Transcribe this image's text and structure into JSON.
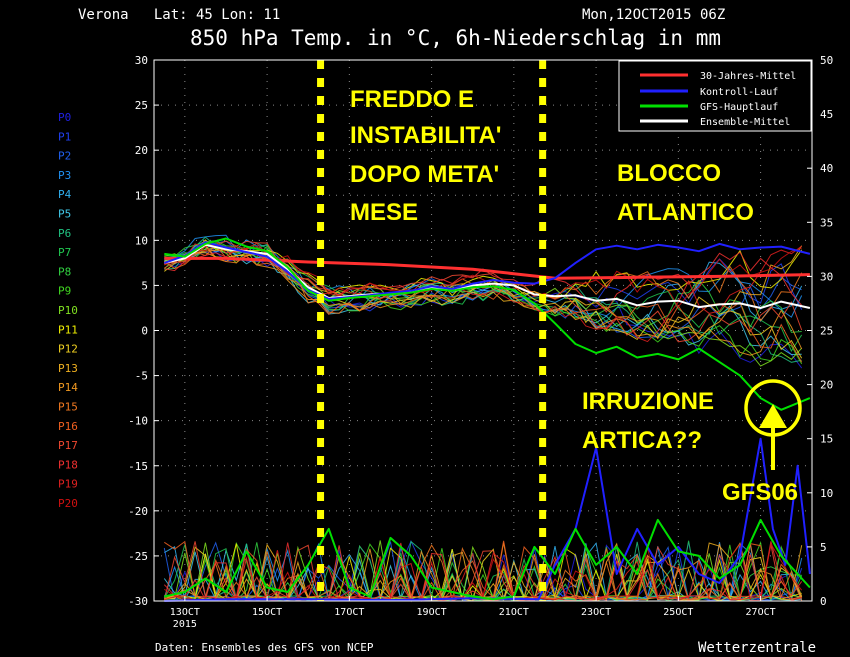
{
  "header": {
    "location": "Verona   Lat: 45 Lon: 11",
    "run": "Mon,12OCT2015 06Z",
    "title": "850 hPa Temp. in °C, 6h-Niederschlag in mm"
  },
  "footer": {
    "source": "Daten: Ensembles des GFS von NCEP",
    "brand": "Wetterzentrale"
  },
  "members": [
    {
      "name": "P0",
      "color": "#2020e0"
    },
    {
      "name": "P1",
      "color": "#2040f0"
    },
    {
      "name": "P2",
      "color": "#2060f0"
    },
    {
      "name": "P3",
      "color": "#2090f0"
    },
    {
      "name": "P4",
      "color": "#30b0f0"
    },
    {
      "name": "P5",
      "color": "#40c8e8"
    },
    {
      "name": "P6",
      "color": "#20c080"
    },
    {
      "name": "P7",
      "color": "#20c850"
    },
    {
      "name": "P8",
      "color": "#30d040"
    },
    {
      "name": "P9",
      "color": "#40d820"
    },
    {
      "name": "P10",
      "color": "#80e020"
    },
    {
      "name": "P11",
      "color": "#f0f000"
    },
    {
      "name": "P12",
      "color": "#f0d020"
    },
    {
      "name": "P13",
      "color": "#f0b020"
    },
    {
      "name": "P14",
      "color": "#f09820"
    },
    {
      "name": "P15",
      "color": "#f07820"
    },
    {
      "name": "P16",
      "color": "#f06020"
    },
    {
      "name": "P17",
      "color": "#f04830"
    },
    {
      "name": "P18",
      "color": "#f03030"
    },
    {
      "name": "P19",
      "color": "#e02020"
    },
    {
      "name": "P20",
      "color": "#d01010"
    }
  ],
  "annotations": {
    "freddo": [
      "FREDDO E",
      "INSTABILITA'",
      "DOPO META'",
      "MESE"
    ],
    "blocco": [
      "BLOCCO",
      "ATLANTICO"
    ],
    "irruzione": [
      "IRRUZIONE",
      "ARTICA??"
    ],
    "gfs06": "GFS06"
  },
  "chart_data": {
    "type": "line",
    "x_ticks": [
      {
        "day": 13,
        "label": "13OCT",
        "sub": "2015"
      },
      {
        "day": 15,
        "label": "15OCT",
        "sub": ""
      },
      {
        "day": 17,
        "label": "17OCT",
        "sub": ""
      },
      {
        "day": 19,
        "label": "19OCT",
        "sub": ""
      },
      {
        "day": 21,
        "label": "21OCT",
        "sub": ""
      },
      {
        "day": 23,
        "label": "23OCT",
        "sub": ""
      },
      {
        "day": 25,
        "label": "25OCT",
        "sub": ""
      },
      {
        "day": 27,
        "label": "27OCT",
        "sub": ""
      }
    ],
    "xlim": [
      12.25,
      28.25
    ],
    "ylim_left": [
      -30,
      30
    ],
    "ylim_right": [
      0,
      50
    ],
    "y_ticks_left": [
      30,
      25,
      20,
      15,
      10,
      5,
      0,
      -5,
      -10,
      -15,
      -20,
      -25,
      -30
    ],
    "y_ticks_right": [
      50,
      45,
      40,
      35,
      30,
      25,
      20,
      15,
      10,
      5,
      0
    ],
    "grid": true,
    "legend": [
      {
        "name": "30-Jahres-Mittel",
        "color": "#ff3030"
      },
      {
        "name": "Kontroll-Lauf",
        "color": "#2020ff"
      },
      {
        "name": "GFS-Hauptlauf",
        "color": "#00e000"
      },
      {
        "name": "Ensemble-Mittel",
        "color": "#ffffff"
      }
    ],
    "legend_position": "top-right",
    "vertical_markers_day": [
      16.3,
      21.7
    ],
    "series": [
      {
        "name": "30-Jahres-Mittel",
        "color": "#ff3030",
        "x": [
          12.5,
          14,
          16,
          18,
          20,
          21,
          22,
          24,
          26,
          28.2
        ],
        "y": [
          8.0,
          8.0,
          7.6,
          7.3,
          6.8,
          6.3,
          5.8,
          5.9,
          6.0,
          6.2
        ]
      },
      {
        "name": "Ensemble-Mittel",
        "color": "#ffffff",
        "x": [
          12.5,
          13,
          13.5,
          14,
          14.5,
          15,
          15.5,
          16,
          16.5,
          17,
          17.5,
          18,
          18.5,
          19,
          19.5,
          20,
          20.5,
          21,
          21.5,
          22,
          22.5,
          23,
          23.5,
          24,
          24.5,
          25,
          25.5,
          26,
          26.5,
          27,
          27.5,
          28.2
        ],
        "y": [
          7.5,
          8.0,
          9.5,
          9.0,
          8.8,
          8.5,
          6.8,
          4.8,
          3.6,
          3.8,
          4.0,
          4.1,
          4.3,
          4.8,
          4.5,
          5.0,
          5.2,
          5.0,
          4.0,
          3.8,
          3.9,
          3.3,
          3.5,
          2.8,
          3.2,
          3.3,
          2.6,
          2.9,
          3.0,
          2.5,
          3.2,
          2.5
        ]
      },
      {
        "name": "Kontroll-Lauf",
        "color": "#2020ff",
        "x": [
          12.5,
          13,
          13.5,
          14,
          14.5,
          15,
          15.5,
          16,
          16.5,
          17,
          17.5,
          18,
          18.5,
          19,
          19.5,
          20,
          20.5,
          21,
          21.5,
          22,
          22.5,
          23,
          23.5,
          24,
          24.5,
          25,
          25.5,
          26,
          26.5,
          27,
          27.5,
          28.2
        ],
        "y": [
          7.5,
          8.3,
          9.8,
          9.2,
          8.7,
          8.2,
          6.5,
          4.5,
          3.5,
          3.7,
          3.9,
          4.2,
          4.4,
          4.9,
          4.6,
          5.2,
          5.6,
          5.3,
          5.2,
          5.8,
          7.5,
          9.0,
          9.4,
          9.0,
          9.5,
          9.2,
          8.8,
          9.6,
          9.0,
          9.2,
          9.3,
          8.5
        ]
      },
      {
        "name": "GFS-Hauptlauf",
        "color": "#00e000",
        "x": [
          12.5,
          13,
          13.5,
          14,
          14.5,
          15,
          15.5,
          16,
          16.5,
          17,
          17.5,
          18,
          18.5,
          19,
          19.5,
          20,
          20.5,
          21,
          21.5,
          22,
          22.5,
          23,
          23.5,
          24,
          24.5,
          25,
          25.5,
          26,
          26.5,
          27,
          27.5,
          28.2
        ],
        "y": [
          8.5,
          8.2,
          9.6,
          10.2,
          9.3,
          8.8,
          7.0,
          4.4,
          3.3,
          3.6,
          3.8,
          4.0,
          4.2,
          4.6,
          4.4,
          4.8,
          4.9,
          4.5,
          3.0,
          0.8,
          -1.5,
          -2.5,
          -1.8,
          -3.0,
          -2.6,
          -3.2,
          -2.0,
          -3.5,
          -5.0,
          -7.5,
          -8.8,
          -7.5
        ]
      },
      {
        "name": "Kontroll-Lauf-Niederschlag",
        "color": "#2020ff",
        "x": [
          12.5,
          14,
          16,
          18,
          20,
          21.6,
          22,
          22.5,
          23,
          23.5,
          24,
          24.5,
          25,
          25.5,
          26,
          26.5,
          27,
          27.3,
          27.6,
          27.9,
          28.2
        ],
        "y": [
          -30,
          -29.8,
          -29.8,
          -29.9,
          -29.7,
          -29.8,
          -26,
          -22,
          -13,
          -27,
          -22,
          -26,
          -24,
          -27,
          -28,
          -25,
          -12,
          -22,
          -26,
          -15,
          -27
        ]
      },
      {
        "name": "GFS-Hauptlauf-Niederschlag",
        "color": "#00e000",
        "x": [
          12.5,
          13,
          13.5,
          14,
          14.5,
          15,
          15.5,
          16,
          16.5,
          17,
          17.5,
          18,
          18.5,
          19,
          19.5,
          20,
          20.5,
          21,
          21.5,
          22,
          22.5,
          23,
          23.5,
          24,
          24.5,
          25,
          25.5,
          26,
          26.5,
          27,
          27.5,
          28.2
        ],
        "y": [
          -29.5,
          -29.0,
          -27.5,
          -29.0,
          -24.5,
          -28.5,
          -29.0,
          -26.0,
          -22.0,
          -28.5,
          -29.5,
          -23.0,
          -25.0,
          -28.5,
          -29.0,
          -29.5,
          -29.8,
          -29.5,
          -24.0,
          -27.0,
          -22.0,
          -26.0,
          -24.0,
          -27.0,
          -21.0,
          -24.5,
          -25.0,
          -27.5,
          -26.0,
          -21.0,
          -25.0,
          -28.5
        ]
      }
    ]
  }
}
